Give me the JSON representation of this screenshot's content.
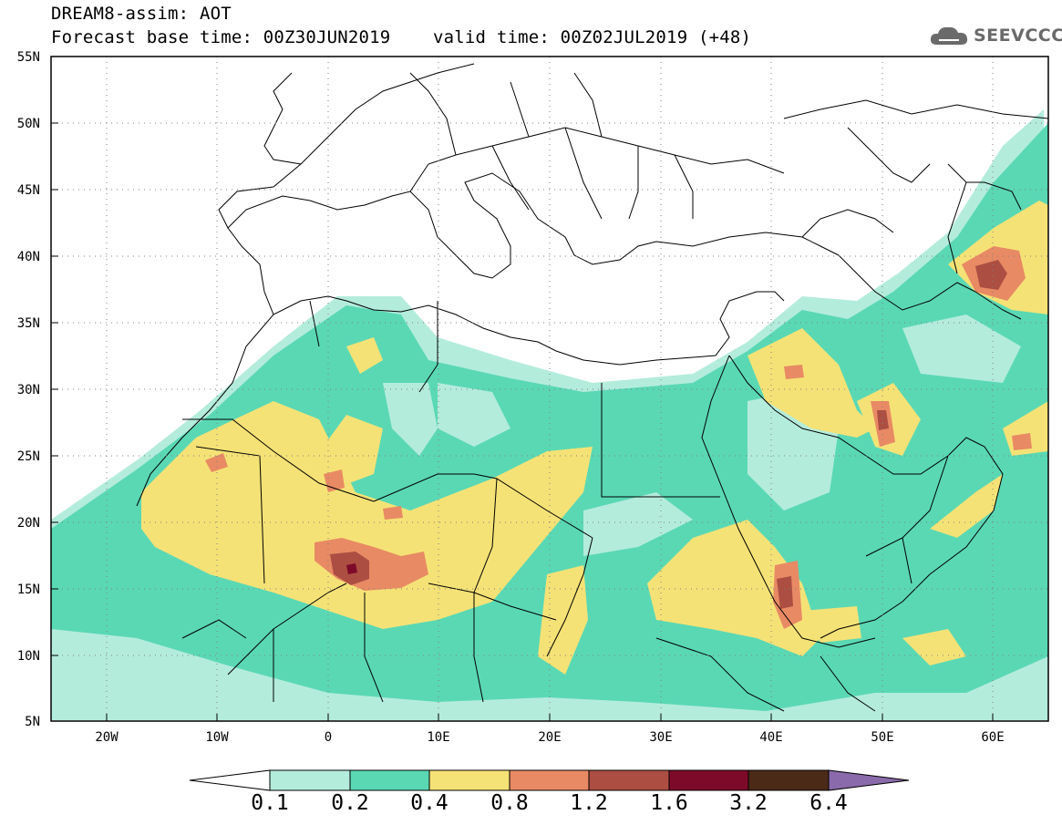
{
  "header": {
    "line1": "DREAM8-assim: AOT",
    "line2": "Forecast base time: 00Z30JUN2019    valid time: 00Z02JUL2019 (+48)"
  },
  "logo": {
    "text": "SEEVCCC",
    "icon": "cloud-icon",
    "color": "#6a6a6a"
  },
  "map": {
    "projection": "lat-lon",
    "lon_range": [
      -25,
      65
    ],
    "lat_range": [
      5,
      55
    ],
    "grid": "dotted",
    "lat_labels": [
      "55N",
      "50N",
      "45N",
      "40N",
      "35N",
      "30N",
      "25N",
      "20N",
      "15N",
      "10N",
      "5N"
    ],
    "lon_labels": [
      "20W",
      "10W",
      "0",
      "10E",
      "20E",
      "30E",
      "40E",
      "50E",
      "60E"
    ]
  },
  "colorbar": {
    "levels": [
      "0.1",
      "0.2",
      "0.4",
      "0.8",
      "1.2",
      "1.6",
      "3.2",
      "6.4"
    ],
    "colors": [
      "#b4ecdc",
      "#5ad8b4",
      "#f5e276",
      "#e88a64",
      "#ac4e42",
      "#7e0a2a",
      "#4c2a18",
      "#8a6aaa"
    ],
    "extend": "both"
  }
}
